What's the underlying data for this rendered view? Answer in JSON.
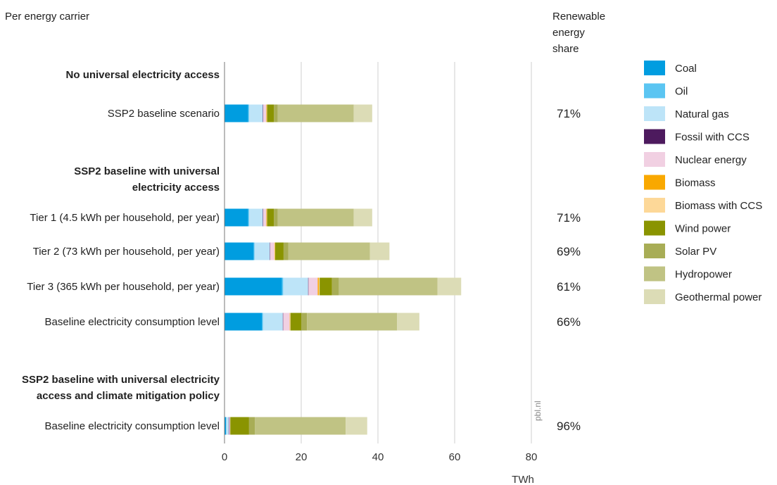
{
  "header": {
    "subtitle": "Per energy carrier",
    "share_title": [
      "Renewable",
      "energy",
      "share"
    ]
  },
  "source_label": "pbl.nl",
  "chart_data": {
    "type": "bar",
    "orientation": "horizontal",
    "stacked": true,
    "xlabel": "TWh",
    "xlim": [
      0,
      80
    ],
    "xticks": [
      0,
      20,
      40,
      60,
      80
    ],
    "grid": true,
    "legend_position": "right",
    "groups": [
      {
        "title": "No universal electricity access",
        "rows": [
          0
        ]
      },
      {
        "title": "SSP2 baseline with universal electricity access",
        "rows": [
          1,
          2,
          3,
          4
        ]
      },
      {
        "title": "SSP2 baseline with universal electricity access and climate mitigation policy",
        "rows": [
          5
        ]
      }
    ],
    "categories": [
      "SSP2 baseline scenario",
      "Tier 1 (4.5 kWh per household, per year)",
      "Tier 2 (73 kWh per household, per year)",
      "Tier 3 (365 kWh per household, per year)",
      "Baseline electricity consumption level",
      "Baseline electricity consumption level"
    ],
    "renewable_share": [
      "71%",
      "71%",
      "69%",
      "61%",
      "66%",
      "96%"
    ],
    "series": [
      {
        "name": "Coal",
        "color": "#009de0",
        "values": [
          6.2,
          6.2,
          7.6,
          15.0,
          9.8,
          0.4
        ]
      },
      {
        "name": "Oil",
        "color": "#5bc5f2",
        "values": [
          0.2,
          0.2,
          0.2,
          0.3,
          0.2,
          0.1
        ]
      },
      {
        "name": "Natural gas",
        "color": "#bde4f8",
        "values": [
          3.6,
          3.6,
          4.0,
          6.5,
          5.2,
          0.6
        ]
      },
      {
        "name": "Fossil with CCS",
        "color": "#4d1a5e",
        "values": [
          0.1,
          0.1,
          0.1,
          0.1,
          0.1,
          0.1
        ]
      },
      {
        "name": "Nuclear energy",
        "color": "#f1d0e2",
        "values": [
          0.8,
          0.8,
          1.1,
          2.4,
          1.7,
          0.3
        ]
      },
      {
        "name": "Biomass",
        "color": "#f9a800",
        "values": [
          0.1,
          0.1,
          0.1,
          0.3,
          0.1,
          0.0
        ]
      },
      {
        "name": "Biomass with CCS",
        "color": "#fdd898",
        "values": [
          0.1,
          0.1,
          0.1,
          0.2,
          0.1,
          0.0
        ]
      },
      {
        "name": "Wind power",
        "color": "#8a9400",
        "values": [
          1.8,
          1.8,
          2.2,
          3.2,
          2.8,
          4.9
        ]
      },
      {
        "name": "Solar PV",
        "color": "#a8ad56",
        "values": [
          1.0,
          1.0,
          1.2,
          1.8,
          1.5,
          1.5
        ]
      },
      {
        "name": "Hydropower",
        "color": "#c0c384",
        "values": [
          19.8,
          19.8,
          21.3,
          25.7,
          23.5,
          23.7
        ]
      },
      {
        "name": "Geothermal power",
        "color": "#dcdcb6",
        "values": [
          4.8,
          4.8,
          5.1,
          6.2,
          5.8,
          5.6
        ]
      }
    ]
  }
}
